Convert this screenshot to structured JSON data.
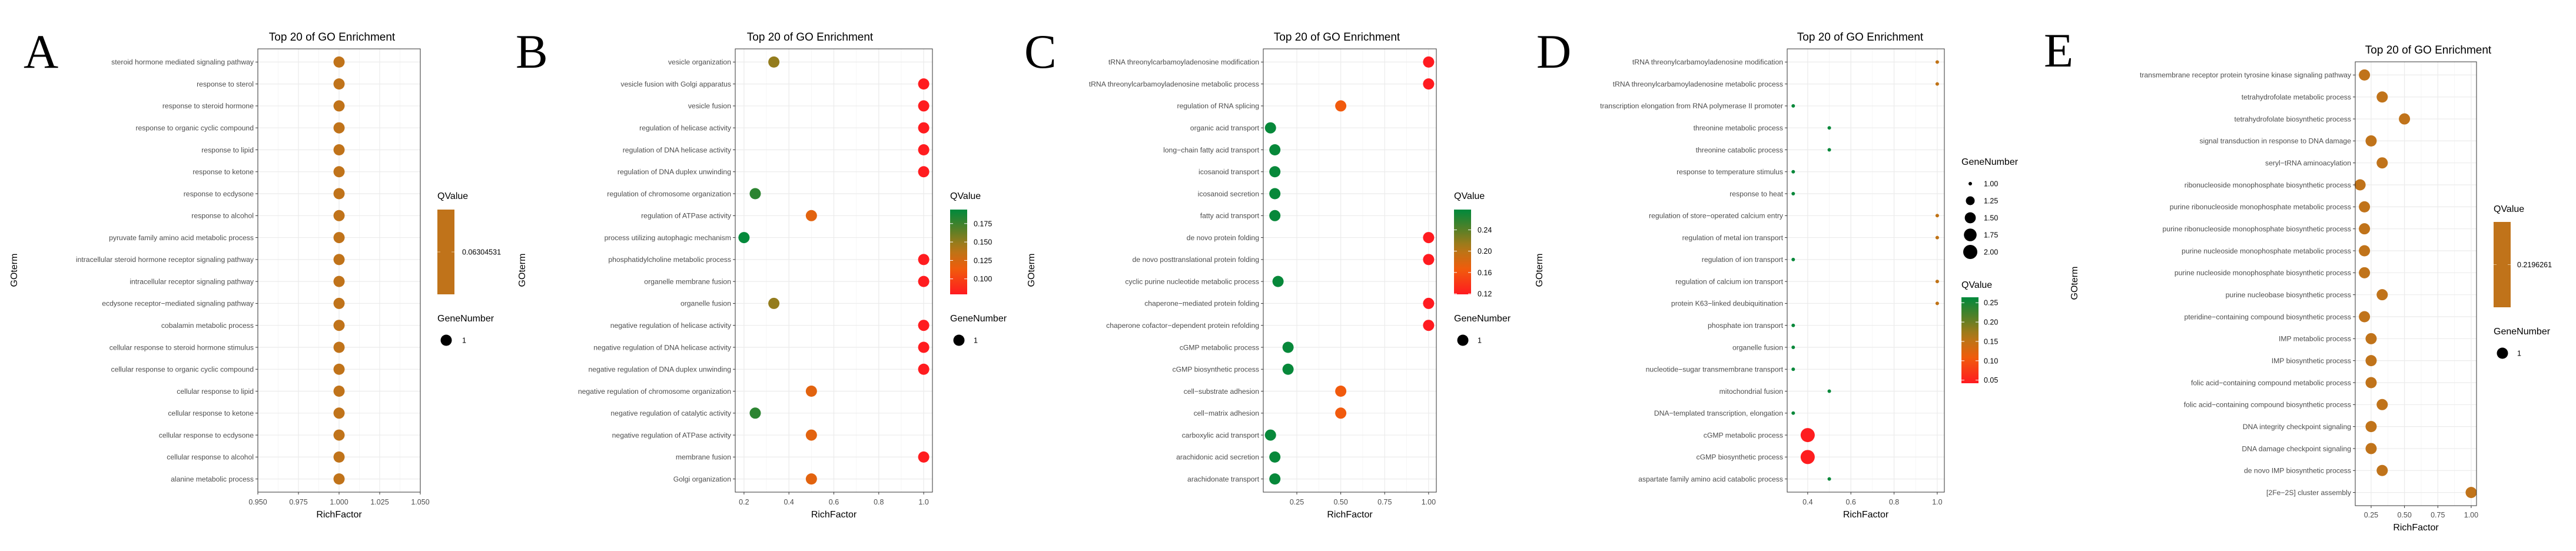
{
  "chart_data": [
    {
      "type": "scatter",
      "panel_letter": "A",
      "title": "Top 20 of GO Enrichment",
      "xlabel": "RichFactor",
      "ylabel": "GOterm",
      "xlim": [
        0.95,
        1.05
      ],
      "xticks": [
        0.95,
        0.975,
        1.0,
        1.025,
        1.05
      ],
      "xtick_labels": [
        "0.950",
        "0.975",
        "1.000",
        "1.025",
        "1.050"
      ],
      "grid": true,
      "terms": [
        "steroid hormone mediated signaling pathway",
        "response to sterol",
        "response to steroid hormone",
        "response to organic cyclic compound",
        "response to lipid",
        "response to ketone",
        "response to ecdysone",
        "response to alcohol",
        "pyruvate family amino acid metabolic process",
        "intracellular steroid hormone receptor signaling pathway",
        "intracellular receptor signaling pathway",
        "ecdysone receptor−mediated signaling pathway",
        "cobalamin metabolic process",
        "cellular response to steroid hormone stimulus",
        "cellular response to organic cyclic compound",
        "cellular response to lipid",
        "cellular response to ketone",
        "cellular response to ecdysone",
        "cellular response to alcohol",
        "alanine metabolic process"
      ],
      "richfactor": [
        1,
        1,
        1,
        1,
        1,
        1,
        1,
        1,
        1,
        1,
        1,
        1,
        1,
        1,
        1,
        1,
        1,
        1,
        1,
        1
      ],
      "gene_number": [
        1,
        1,
        1,
        1,
        1,
        1,
        1,
        1,
        1,
        1,
        1,
        1,
        1,
        1,
        1,
        1,
        1,
        1,
        1,
        1
      ],
      "qvalue_single": "0.06304531",
      "single_color": "#c0731a",
      "legend": {
        "qvalue_title": "QValue",
        "gene_title": "GeneNumber",
        "gene_labels": [
          "1"
        ],
        "gene_values": [
          1
        ],
        "order": "q-first"
      }
    },
    {
      "type": "scatter",
      "panel_letter": "B",
      "title": "Top 20 of GO Enrichment",
      "xlabel": "RichFactor",
      "ylabel": "GOterm",
      "xlim": [
        0.161,
        1.039
      ],
      "xticks": [
        0.2,
        0.4,
        0.6,
        0.8,
        1.0
      ],
      "xtick_labels": [
        "0.2",
        "0.4",
        "0.6",
        "0.8",
        "1.0"
      ],
      "grid": true,
      "terms": [
        "vesicle organization",
        "vesicle fusion with Golgi apparatus",
        "vesicle fusion",
        "regulation of helicase activity",
        "regulation of DNA helicase activity",
        "regulation of DNA duplex unwinding",
        "regulation of chromosome organization",
        "regulation of ATPase activity",
        "process utilizing autophagic mechanism",
        "phosphatidylcholine metabolic process",
        "organelle membrane fusion",
        "organelle fusion",
        "negative regulation of helicase activity",
        "negative regulation of DNA helicase activity",
        "negative regulation of DNA duplex unwinding",
        "negative regulation of chromosome organization",
        "negative regulation of catalytic activity",
        "negative regulation of ATPase activity",
        "membrane fusion",
        "Golgi organization"
      ],
      "richfactor": [
        0.333,
        1,
        1,
        1,
        1,
        1,
        0.25,
        0.5,
        0.2,
        1,
        1,
        0.333,
        1,
        1,
        1,
        0.5,
        0.25,
        0.5,
        1,
        0.5
      ],
      "qvalue": [
        0.15,
        0.08,
        0.08,
        0.08,
        0.08,
        0.08,
        0.18,
        0.12,
        0.193,
        0.08,
        0.08,
        0.15,
        0.08,
        0.08,
        0.08,
        0.12,
        0.18,
        0.12,
        0.08,
        0.12
      ],
      "gene_number": [
        1,
        1,
        1,
        1,
        1,
        1,
        1,
        1,
        1,
        1,
        1,
        1,
        1,
        1,
        1,
        1,
        1,
        1,
        1,
        1
      ],
      "legend": {
        "qvalue_title": "QValue",
        "qvalue_range": [
          0.079,
          0.194
        ],
        "qvalue_ticks": [
          0.175,
          0.15,
          0.125,
          0.1
        ],
        "qvalue_tick_labels": [
          "0.175",
          "0.150",
          "0.125",
          "0.100"
        ],
        "gene_title": "GeneNumber",
        "gene_labels": [
          "1"
        ],
        "gene_values": [
          1
        ],
        "order": "q-first"
      }
    },
    {
      "type": "scatter",
      "panel_letter": "C",
      "title": "Top 20 of GO Enrichment",
      "xlabel": "RichFactor",
      "ylabel": "GOterm",
      "xlim": [
        0.059,
        1.044
      ],
      "xticks": [
        0.25,
        0.5,
        0.75,
        1.0
      ],
      "xtick_labels": [
        "0.25",
        "0.50",
        "0.75",
        "1.00"
      ],
      "grid": true,
      "terms": [
        "tRNA threonylcarbamoyladenosine modification",
        "tRNA threonylcarbamoyladenosine metabolic process",
        "regulation of RNA splicing",
        "organic acid transport",
        "long−chain fatty acid transport",
        "icosanoid transport",
        "icosanoid secretion",
        "fatty acid transport",
        "de novo protein folding",
        "de novo posttranslational protein folding",
        "cyclic purine nucleotide metabolic process",
        "chaperone−mediated protein folding",
        "chaperone cofactor−dependent protein refolding",
        "cGMP metabolic process",
        "cGMP biosynthetic process",
        "cell−substrate adhesion",
        "cell−matrix adhesion",
        "carboxylic acid transport",
        "arachidonic acid secretion",
        "arachidonate transport"
      ],
      "richfactor": [
        1,
        1,
        0.5,
        0.1,
        0.125,
        0.125,
        0.125,
        0.125,
        1,
        1,
        0.143,
        1,
        1,
        0.2,
        0.2,
        0.5,
        0.5,
        0.1,
        0.125,
        0.125
      ],
      "qvalue": [
        0.12,
        0.12,
        0.165,
        0.275,
        0.275,
        0.275,
        0.275,
        0.275,
        0.12,
        0.12,
        0.275,
        0.12,
        0.12,
        0.275,
        0.275,
        0.165,
        0.165,
        0.275,
        0.275,
        0.275
      ],
      "gene_number": [
        1,
        1,
        1,
        1,
        1,
        1,
        1,
        1,
        1,
        1,
        1,
        1,
        1,
        1,
        1,
        1,
        1,
        1,
        1,
        1
      ],
      "legend": {
        "qvalue_title": "QValue",
        "qvalue_range": [
          0.119,
          0.278
        ],
        "qvalue_ticks": [
          0.24,
          0.2,
          0.16,
          0.12
        ],
        "qvalue_tick_labels": [
          "0.24",
          "0.20",
          "0.16",
          "0.12"
        ],
        "gene_title": "GeneNumber",
        "gene_labels": [
          "1"
        ],
        "gene_values": [
          1
        ],
        "order": "q-first"
      }
    },
    {
      "type": "scatter",
      "panel_letter": "D",
      "title": "Top 20 of GO Enrichment",
      "xlabel": "RichFactor",
      "ylabel": "GOterm",
      "xlim": [
        0.305,
        1.033
      ],
      "xticks": [
        0.4,
        0.6,
        0.8,
        1.0
      ],
      "xtick_labels": [
        "0.4",
        "0.6",
        "0.8",
        "1.0"
      ],
      "grid": true,
      "terms": [
        "tRNA threonylcarbamoyladenosine modification",
        "tRNA threonylcarbamoyladenosine metabolic process",
        "transcription elongation from RNA polymerase II promoter",
        "threonine metabolic process",
        "threonine catabolic process",
        "response to temperature stimulus",
        "response to heat",
        "regulation of store−operated calcium entry",
        "regulation of metal ion transport",
        "regulation of ion transport",
        "regulation of calcium ion transport",
        "protein K63−linked deubiquitination",
        "phosphate ion transport",
        "organelle fusion",
        "nucleotide−sugar transmembrane transport",
        "mitochondrial fusion",
        "DNA−templated transcription, elongation",
        "cGMP metabolic process",
        "cGMP biosynthetic process",
        "aspartate family amino acid catabolic process"
      ],
      "richfactor": [
        1,
        1,
        0.333,
        0.5,
        0.5,
        0.333,
        0.333,
        1,
        1,
        0.333,
        1,
        1,
        0.333,
        0.333,
        0.333,
        0.5,
        0.333,
        0.4,
        0.4,
        0.5
      ],
      "qvalue": [
        0.15,
        0.15,
        0.26,
        0.26,
        0.26,
        0.26,
        0.26,
        0.15,
        0.15,
        0.26,
        0.15,
        0.15,
        0.26,
        0.26,
        0.26,
        0.26,
        0.26,
        0.045,
        0.045,
        0.26
      ],
      "gene_number": [
        1,
        1,
        1,
        1,
        1,
        1,
        1,
        1,
        1,
        1,
        1,
        1,
        1,
        1,
        1,
        1,
        1,
        2,
        2,
        1
      ],
      "legend": {
        "qvalue_title": "QValue",
        "qvalue_range": [
          0.042,
          0.264
        ],
        "qvalue_ticks": [
          0.25,
          0.2,
          0.15,
          0.1,
          0.05
        ],
        "qvalue_tick_labels": [
          "0.25",
          "0.20",
          "0.15",
          "0.10",
          "0.05"
        ],
        "gene_title": "GeneNumber",
        "gene_labels": [
          "1.00",
          "1.25",
          "1.50",
          "1.75",
          "2.00"
        ],
        "gene_values": [
          1,
          1.25,
          1.5,
          1.75,
          2
        ],
        "order": "gene-first"
      }
    },
    {
      "type": "scatter",
      "panel_letter": "E",
      "title": "Top 20 of GO Enrichment",
      "xlabel": "RichFactor",
      "ylabel": "GOterm",
      "xlim": [
        0.131,
        1.04
      ],
      "xticks": [
        0.25,
        0.5,
        0.75,
        1.0
      ],
      "xtick_labels": [
        "0.25",
        "0.50",
        "0.75",
        "1.00"
      ],
      "grid": true,
      "terms": [
        "transmembrane receptor protein tyrosine kinase signaling pathway",
        "tetrahydrofolate metabolic process",
        "tetrahydrofolate biosynthetic process",
        "signal transduction in response to DNA damage",
        "seryl−tRNA aminoacylation",
        "ribonucleoside monophosphate biosynthetic process",
        "purine ribonucleoside monophosphate metabolic process",
        "purine ribonucleoside monophosphate biosynthetic process",
        "purine nucleoside monophosphate metabolic process",
        "purine nucleoside monophosphate biosynthetic process",
        "purine nucleobase biosynthetic process",
        "pteridine−containing compound biosynthetic process",
        "IMP metabolic process",
        "IMP biosynthetic process",
        "folic acid−containing compound metabolic process",
        "folic acid−containing compound biosynthetic process",
        "DNA integrity checkpoint signaling",
        "DNA damage checkpoint signaling",
        "de novo IMP biosynthetic process",
        "[2Fe−2S] cluster assembly"
      ],
      "richfactor": [
        0.2,
        0.333,
        0.5,
        0.25,
        0.333,
        0.167,
        0.2,
        0.2,
        0.2,
        0.2,
        0.333,
        0.2,
        0.25,
        0.25,
        0.25,
        0.333,
        0.25,
        0.25,
        0.333,
        1
      ],
      "gene_number": [
        1,
        1,
        1,
        1,
        1,
        1,
        1,
        1,
        1,
        1,
        1,
        1,
        1,
        1,
        1,
        1,
        1,
        1,
        1,
        1
      ],
      "qvalue_single": "0.2196261",
      "single_color": "#c0731a",
      "legend": {
        "qvalue_title": "QValue",
        "gene_title": "GeneNumber",
        "gene_labels": [
          "1"
        ],
        "gene_values": [
          1
        ],
        "order": "q-first"
      }
    }
  ]
}
